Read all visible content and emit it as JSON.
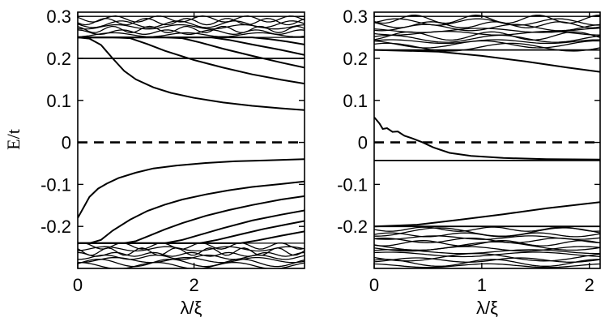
{
  "figure": {
    "ylabel": "E/t"
  },
  "chart_data": [
    {
      "type": "line",
      "panel": "left",
      "xlabel": "λ/ξ",
      "ylabel": "E/t",
      "xlim": [
        0,
        3.9
      ],
      "ylim": [
        -0.3,
        0.31
      ],
      "x_ticks": [
        0,
        2
      ],
      "x_tick_labels": [
        "0",
        "2"
      ],
      "y_ticks": [
        -0.2,
        -0.1,
        0,
        0.1,
        0.2,
        0.3
      ],
      "y_tick_labels": [
        "-0.2",
        "-0.1",
        "0",
        "0.1",
        "0.2",
        "0.3"
      ],
      "grid": false,
      "upper_band": {
        "bottom": 0.25,
        "top": 0.3
      },
      "lower_band": {
        "bottom": -0.3,
        "top": -0.24
      },
      "reference_lines": [
        {
          "y": 0,
          "style": "dashed"
        },
        {
          "y": 0.2,
          "style": "solid"
        }
      ],
      "series": [
        {
          "x": [
            0,
            0.2,
            0.4,
            0.6,
            0.8,
            1.0,
            1.3,
            1.6,
            2.0,
            2.5,
            3.0,
            3.5,
            3.9
          ],
          "y": [
            0.25,
            0.247,
            0.232,
            0.2,
            0.17,
            0.15,
            0.131,
            0.118,
            0.106,
            0.095,
            0.087,
            0.081,
            0.077
          ]
        },
        {
          "x": [
            0,
            0.3,
            0.6,
            0.9,
            1.2,
            1.5,
            2.0,
            2.5,
            3.0,
            3.5,
            3.9
          ],
          "y": [
            0.25,
            0.25,
            0.25,
            0.248,
            0.234,
            0.218,
            0.196,
            0.178,
            0.162,
            0.149,
            0.14
          ]
        },
        {
          "x": [
            0,
            1.2,
            1.5,
            1.8,
            2.1,
            2.5,
            3.0,
            3.5,
            3.9
          ],
          "y": [
            0.25,
            0.25,
            0.25,
            0.248,
            0.238,
            0.223,
            0.206,
            0.19,
            0.178
          ]
        },
        {
          "x": [
            0,
            2.0,
            2.3,
            2.6,
            3.0,
            3.5,
            3.9
          ],
          "y": [
            0.25,
            0.25,
            0.25,
            0.244,
            0.233,
            0.22,
            0.208
          ]
        },
        {
          "x": [
            0,
            2.7,
            3.0,
            3.3,
            3.6,
            3.9
          ],
          "y": [
            0.25,
            0.25,
            0.25,
            0.246,
            0.24,
            0.233
          ]
        },
        {
          "x": [
            0,
            0.1,
            0.2,
            0.35,
            0.5,
            0.7,
            1.0,
            1.3,
            1.7,
            2.2,
            2.7,
            3.2,
            3.9
          ],
          "y": [
            -0.18,
            -0.155,
            -0.13,
            -0.11,
            -0.098,
            -0.085,
            -0.072,
            -0.062,
            -0.055,
            -0.049,
            -0.045,
            -0.043,
            -0.04
          ]
        },
        {
          "x": [
            0,
            0.2,
            0.4,
            0.6,
            0.9,
            1.2,
            1.5,
            1.8,
            2.2,
            2.6,
            3.0,
            3.5,
            3.9
          ],
          "y": [
            -0.24,
            -0.24,
            -0.232,
            -0.21,
            -0.184,
            -0.163,
            -0.148,
            -0.136,
            -0.124,
            -0.114,
            -0.106,
            -0.099,
            -0.093
          ]
        },
        {
          "x": [
            0,
            0.8,
            1.0,
            1.2,
            1.5,
            1.8,
            2.2,
            2.6,
            3.0,
            3.5,
            3.9
          ],
          "y": [
            -0.24,
            -0.24,
            -0.235,
            -0.224,
            -0.207,
            -0.192,
            -0.175,
            -0.161,
            -0.149,
            -0.136,
            -0.128
          ]
        },
        {
          "x": [
            0,
            1.5,
            1.8,
            2.1,
            2.5,
            3.0,
            3.5,
            3.9
          ],
          "y": [
            -0.24,
            -0.24,
            -0.232,
            -0.22,
            -0.204,
            -0.186,
            -0.172,
            -0.162
          ]
        },
        {
          "x": [
            0,
            2.1,
            2.4,
            2.8,
            3.2,
            3.6,
            3.9
          ],
          "y": [
            -0.24,
            -0.24,
            -0.232,
            -0.219,
            -0.206,
            -0.195,
            -0.187
          ]
        },
        {
          "x": [
            0,
            2.8,
            3.1,
            3.5,
            3.9
          ],
          "y": [
            -0.24,
            -0.24,
            -0.233,
            -0.222,
            -0.212
          ]
        }
      ]
    },
    {
      "type": "line",
      "panel": "right",
      "xlabel": "λ/ξ",
      "ylabel": "",
      "xlim": [
        0,
        2.1
      ],
      "ylim": [
        -0.3,
        0.31
      ],
      "x_ticks": [
        0,
        1,
        2
      ],
      "x_tick_labels": [
        "0",
        "1",
        "2"
      ],
      "y_ticks": [
        -0.2,
        -0.1,
        0,
        0.1,
        0.2,
        0.3
      ],
      "y_tick_labels": [
        "-0.2",
        "-0.1",
        "0",
        "0.1",
        "0.2",
        "0.3"
      ],
      "grid": false,
      "upper_band": {
        "bottom": 0.22,
        "top": 0.3
      },
      "lower_band": {
        "bottom": -0.3,
        "top": -0.2
      },
      "reference_lines": [
        {
          "y": 0,
          "style": "dashed"
        },
        {
          "y": -0.043,
          "style": "solid"
        },
        {
          "y": -0.2,
          "style": "solid"
        },
        {
          "y": 0.22,
          "style": "solid"
        }
      ],
      "series": [
        {
          "x": [
            0,
            0.05,
            0.08,
            0.12,
            0.17,
            0.22,
            0.28,
            0.35,
            0.45,
            0.55,
            0.7,
            0.9,
            1.2,
            1.6,
            2.1
          ],
          "y": [
            0.06,
            0.045,
            0.032,
            0.034,
            0.025,
            0.026,
            0.016,
            0.01,
            0.0,
            -0.012,
            -0.025,
            -0.032,
            -0.037,
            -0.04,
            -0.041
          ]
        },
        {
          "x": [
            0,
            0.4,
            0.8,
            1.2,
            1.6,
            2.1
          ],
          "y": [
            -0.2,
            -0.196,
            -0.184,
            -0.171,
            -0.157,
            -0.142
          ]
        },
        {
          "x": [
            0,
            0.6,
            1.0,
            1.4,
            1.8,
            2.1
          ],
          "y": [
            0.22,
            0.216,
            0.206,
            0.193,
            0.178,
            0.168
          ]
        }
      ]
    }
  ]
}
